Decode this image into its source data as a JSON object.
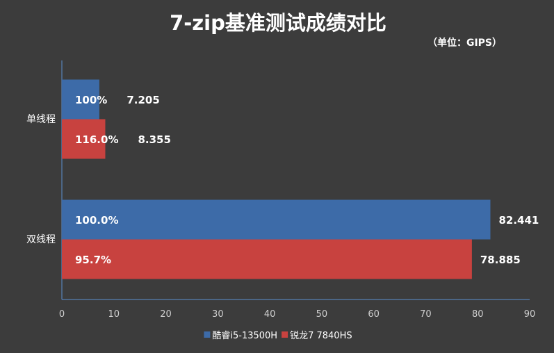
{
  "chart_data": {
    "type": "bar",
    "orientation": "horizontal",
    "title": "7-zip基准测试成绩对比",
    "unit_label": "（单位：GIPS）",
    "categories": [
      "单线程",
      "双线程"
    ],
    "series": [
      {
        "name": "酷睿i5-13500H",
        "color": "#3d6ba8",
        "values": [
          7.205,
          82.441
        ],
        "value_labels": [
          "7.205",
          "82.441"
        ],
        "percent_labels": [
          "100%",
          "100.0%"
        ]
      },
      {
        "name": "锐龙7 7840HS",
        "color": "#c8423f",
        "values": [
          8.355,
          78.885
        ],
        "value_labels": [
          "8.355",
          "78.885"
        ],
        "percent_labels": [
          "116.0%",
          "95.7%"
        ]
      }
    ],
    "xlim": [
      0,
      90
    ],
    "xticks": [
      "0",
      "10",
      "20",
      "30",
      "40",
      "50",
      "60",
      "70",
      "80",
      "90"
    ],
    "grid": false,
    "legend_position": "bottom"
  }
}
